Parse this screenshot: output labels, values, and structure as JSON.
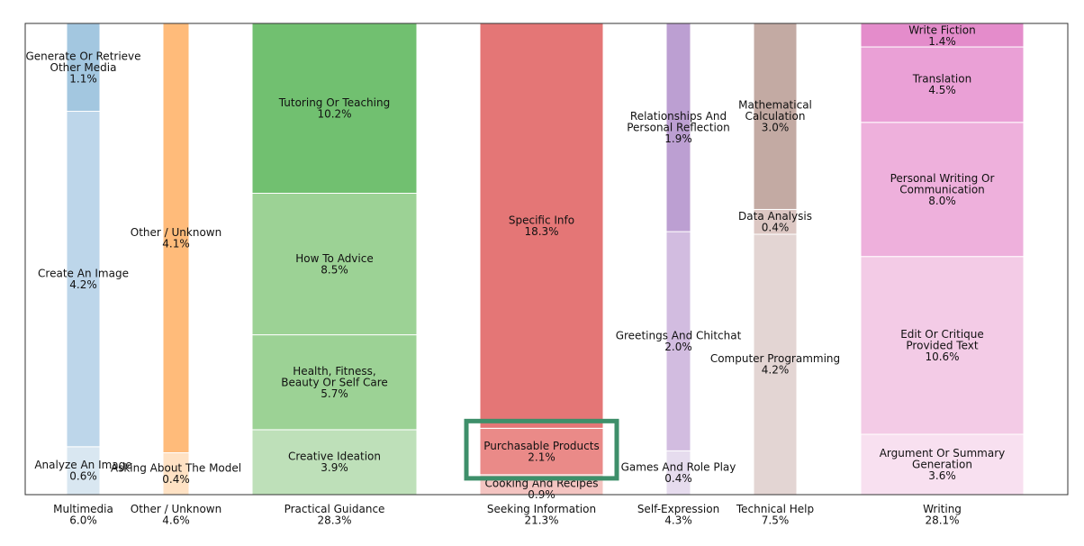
{
  "chart_data": {
    "type": "bar",
    "subtype": "stacked-variable-width (marimekko)",
    "title": "",
    "xlabel": "",
    "ylabel": "",
    "ylim": [
      0,
      100
    ],
    "columns": [
      {
        "category": "Multimedia",
        "share": "6.0%",
        "share_value": 6.0,
        "segments": [
          {
            "label": "Analyze An Image",
            "value": 0.6,
            "display": "0.6%",
            "color": "#d9e7f1"
          },
          {
            "label": "Create An Image",
            "value": 4.2,
            "display": "4.2%",
            "color": "#bdd6ea"
          },
          {
            "label": "Generate Or Retrieve Other Media",
            "value": 1.1,
            "display": "1.1%",
            "color": "#a3c7e0"
          }
        ]
      },
      {
        "category": "Other / Unknown",
        "share": "4.6%",
        "share_value": 4.6,
        "segments": [
          {
            "label": "Asking About The Model",
            "value": 0.4,
            "display": "0.4%",
            "color": "#ffe2c4"
          },
          {
            "label": "Other / Unknown",
            "value": 4.1,
            "display": "4.1%",
            "color": "#ffbb7a"
          }
        ]
      },
      {
        "category": "Practical Guidance",
        "share": "28.3%",
        "share_value": 28.3,
        "segments": [
          {
            "label": "Creative Ideation",
            "value": 3.9,
            "display": "3.9%",
            "color": "#bee0b9"
          },
          {
            "label": "Health, Fitness, Beauty Or Self Care",
            "value": 5.7,
            "display": "5.7%",
            "color": "#9cd295"
          },
          {
            "label": "How To Advice",
            "value": 8.5,
            "display": "8.5%",
            "color": "#9cd295"
          },
          {
            "label": "Tutoring Or Teaching",
            "value": 10.2,
            "display": "10.2%",
            "color": "#71c070"
          }
        ]
      },
      {
        "category": "Seeking Information",
        "share": "21.3%",
        "share_value": 21.3,
        "segments": [
          {
            "label": "Cooking And Recipes",
            "value": 0.9,
            "display": "0.9%",
            "color": "#f4c4c1"
          },
          {
            "label": "Purchasable Products",
            "value": 2.1,
            "display": "2.1%",
            "color": "#ea8a88"
          },
          {
            "label": "Specific Info",
            "value": 18.3,
            "display": "18.3%",
            "color": "#e47676"
          }
        ]
      },
      {
        "category": "Self-Expression",
        "share": "4.3%",
        "share_value": 4.3,
        "segments": [
          {
            "label": "Games And Role Play",
            "value": 0.4,
            "display": "0.4%",
            "color": "#e6dcee"
          },
          {
            "label": "Greetings And Chitchat",
            "value": 2.0,
            "display": "2.0%",
            "color": "#d2bce0"
          },
          {
            "label": "Relationships And Personal Reflection",
            "value": 1.9,
            "display": "1.9%",
            "color": "#bc9fd2"
          }
        ]
      },
      {
        "category": "Technical Help",
        "share": "7.5%",
        "share_value": 7.5,
        "segments": [
          {
            "label": "Computer Programming",
            "value": 4.2,
            "display": "4.2%",
            "color": "#e3d5d3"
          },
          {
            "label": "Data Analysis",
            "value": 0.4,
            "display": "0.4%",
            "color": "#dcc7c3"
          },
          {
            "label": "Mathematical Calculation",
            "value": 3.0,
            "display": "3.0%",
            "color": "#c3aaa3"
          }
        ]
      },
      {
        "category": "Writing",
        "share": "28.1%",
        "share_value": 28.1,
        "segments": [
          {
            "label": "Argument Or Summary Generation",
            "value": 3.6,
            "display": "3.6%",
            "color": "#f8e0f0"
          },
          {
            "label": "Edit Or Critique Provided Text",
            "value": 10.6,
            "display": "10.6%",
            "color": "#f3cbe6"
          },
          {
            "label": "Personal Writing Or Communication",
            "value": 8.0,
            "display": "8.0%",
            "color": "#eeb0dc"
          },
          {
            "label": "Translation",
            "value": 4.5,
            "display": "4.5%",
            "color": "#eaa0d6"
          },
          {
            "label": "Write Fiction",
            "value": 1.4,
            "display": "1.4%",
            "color": "#e48ccb"
          }
        ]
      }
    ],
    "annotations": [
      {
        "type": "highlight-box",
        "target": "Purchasable Products",
        "color": "#3e8f6a"
      }
    ]
  }
}
